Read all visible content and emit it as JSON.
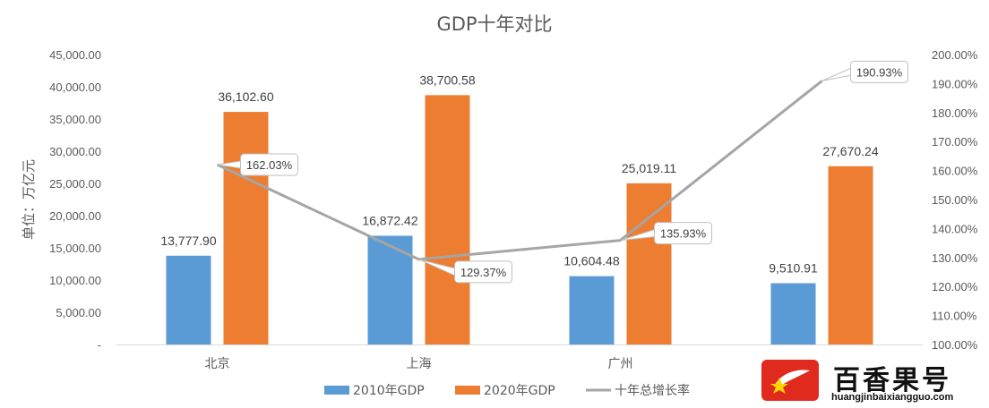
{
  "chart_data": {
    "type": "bar",
    "title": "GDP十年对比",
    "ylabel": "单位：万亿元",
    "categories": [
      "北京",
      "上海",
      "广州",
      ""
    ],
    "series": [
      {
        "name": "2010年GDP",
        "type": "bar",
        "axis": "left",
        "color": "#5b9bd5",
        "values": [
          13777.9,
          16872.42,
          10604.48,
          9510.91
        ],
        "labels": [
          "13,777.90",
          "16,872.42",
          "10,604.48",
          "9,510.91"
        ]
      },
      {
        "name": "2020年GDP",
        "type": "bar",
        "axis": "left",
        "color": "#ed7d31",
        "values": [
          36102.6,
          38700.58,
          25019.11,
          27670.24
        ],
        "labels": [
          "36,102.60",
          "38,700.58",
          "25,019.11",
          "27,670.24"
        ]
      },
      {
        "name": "十年总增长率",
        "type": "line",
        "axis": "right",
        "color": "#a5a5a5",
        "values": [
          162.03,
          129.37,
          135.93,
          190.93
        ],
        "labels": [
          "162.03%",
          "129.37%",
          "135.93%",
          "190.93%"
        ]
      }
    ],
    "ylim": [
      0,
      45000
    ],
    "y2lim": [
      100,
      200
    ],
    "yticks": [
      "-",
      "5,000.00",
      "10,000.00",
      "15,000.00",
      "20,000.00",
      "25,000.00",
      "30,000.00",
      "35,000.00",
      "40,000.00",
      "45,000.00"
    ],
    "y2ticks": [
      "100.00%",
      "110.00%",
      "120.00%",
      "130.00%",
      "140.00%",
      "150.00%",
      "160.00%",
      "170.00%",
      "180.00%",
      "190.00%",
      "200.00%"
    ],
    "grid": false,
    "legend": "bottom"
  },
  "watermark": {
    "text": "百香果号",
    "url": "huangjinbaixiangguo.com"
  }
}
